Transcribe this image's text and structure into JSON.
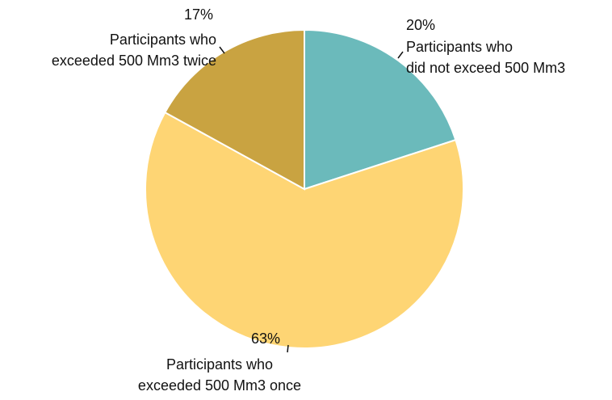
{
  "chart_data": {
    "type": "pie",
    "categories": [
      "Participants who\ndid not exceed 500 Mm3",
      "Participants who\nexceeded 500 Mm3 once",
      "Participants who\nexceeded 500 Mm3 twice"
    ],
    "values": [
      20,
      63,
      17
    ],
    "value_labels": [
      "20%",
      "63%",
      "17%"
    ],
    "colors": [
      "#6bbabb",
      "#fed574",
      "#c9a341"
    ]
  }
}
